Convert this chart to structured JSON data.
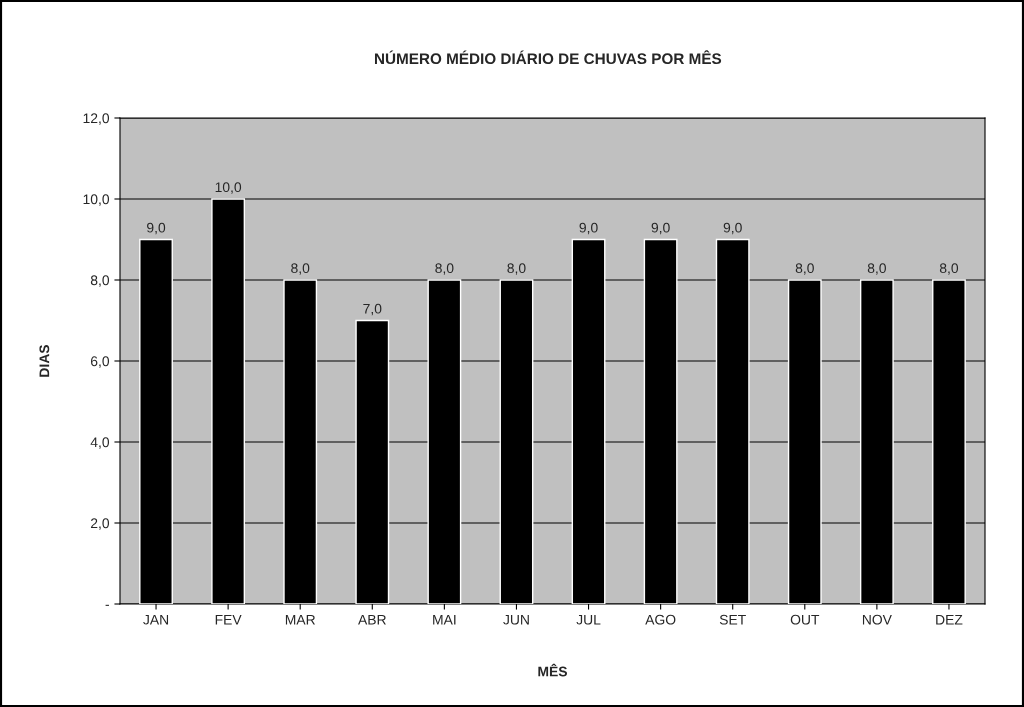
{
  "chart_data": {
    "type": "bar",
    "title": "NÚMERO MÉDIO DIÁRIO DE CHUVAS POR MÊS",
    "xlabel": "MÊS",
    "ylabel": "DIAS",
    "categories": [
      "JAN",
      "FEV",
      "MAR",
      "ABR",
      "MAI",
      "JUN",
      "JUL",
      "AGO",
      "SET",
      "OUT",
      "NOV",
      "DEZ"
    ],
    "values": [
      9,
      10,
      8,
      7,
      8,
      8,
      9,
      9,
      9,
      8,
      8,
      8
    ],
    "value_labels": [
      "9,0",
      "10,0",
      "8,0",
      "7,0",
      "8,0",
      "8,0",
      "9,0",
      "9,0",
      "9,0",
      "8,0",
      "8,0",
      "8,0"
    ],
    "color": "#000000",
    "ylim": [
      0,
      12
    ],
    "yticks": [
      {
        "value": 0,
        "label": "-"
      },
      {
        "value": 2,
        "label": "2,0"
      },
      {
        "value": 4,
        "label": "4,0"
      },
      {
        "value": 6,
        "label": "6,0"
      },
      {
        "value": 8,
        "label": "8,0"
      },
      {
        "value": 10,
        "label": "10,0"
      },
      {
        "value": 12,
        "label": "12,0"
      }
    ],
    "grid": "y",
    "legend": false
  }
}
